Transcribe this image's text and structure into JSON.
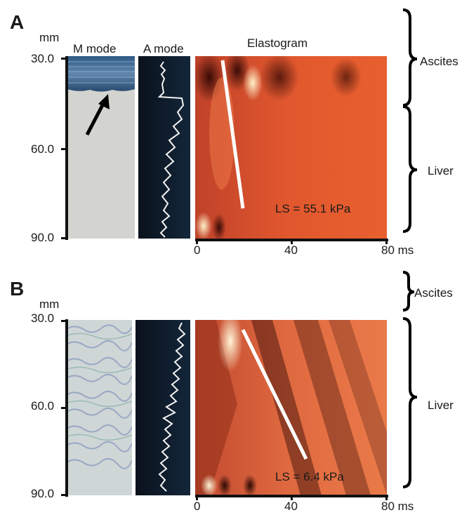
{
  "panels": [
    {
      "letter": "A",
      "unit_mm": "mm",
      "y_ticks": [
        "30.0",
        "60.0",
        "90.0"
      ],
      "x_ticks": [
        "0",
        "40",
        "80 ms"
      ],
      "titles": {
        "m_mode": "M mode",
        "a_mode": "A mode",
        "elastogram": "Elastogram"
      },
      "ls_label": "LS = 55.1 kPa",
      "regions": [
        "Ascites",
        "Liver"
      ]
    },
    {
      "letter": "B",
      "unit_mm": "mm",
      "y_ticks": [
        "30.0",
        "60.0",
        "90.0"
      ],
      "x_ticks": [
        "0",
        "40",
        "80 ms"
      ],
      "ls_label": "LS = 6.4 kPa",
      "regions": [
        "Ascites",
        "Liver"
      ]
    }
  ],
  "colors": {
    "elastogram_base": "#e2582e",
    "elastogram_dark": "#3a0c06",
    "a_mode_bg": "#0b1622",
    "m_mode_gray": "#d3d4cf",
    "m_mode_blue": "#3f6f9a"
  }
}
